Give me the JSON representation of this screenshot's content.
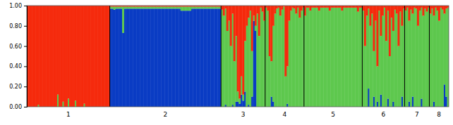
{
  "chart_data": {
    "type": "bar",
    "stacked": true,
    "ylim": [
      0,
      1
    ],
    "yticks": [
      {
        "value": 0,
        "label": "0.00"
      },
      {
        "value": 0.2,
        "label": "0.20"
      },
      {
        "value": 0.4,
        "label": "0.40"
      },
      {
        "value": 0.6,
        "label": "0.60"
      },
      {
        "value": 0.8,
        "label": "0.80"
      },
      {
        "value": 1,
        "label": "1.00"
      }
    ],
    "categories": [
      "1",
      null,
      null,
      null,
      null,
      null,
      null,
      null,
      null,
      null,
      null,
      null,
      null,
      null,
      null,
      null,
      null,
      null,
      null,
      null,
      null,
      null,
      null,
      null,
      null,
      null,
      null,
      null,
      null,
      null,
      null,
      null,
      null,
      null,
      null,
      null,
      null,
      null,
      null,
      null,
      null,
      null,
      null,
      null,
      null,
      null,
      null,
      "2",
      null,
      null,
      null,
      null,
      null,
      null,
      null,
      null,
      null,
      null,
      null,
      null,
      null,
      null,
      null,
      null,
      null,
      null,
      null,
      null,
      null,
      null,
      null,
      null,
      null,
      null,
      null,
      null,
      null,
      null,
      null,
      null,
      null,
      null,
      null,
      null,
      null,
      null,
      null,
      null,
      null,
      null,
      null,
      null,
      null,
      null,
      null,
      null,
      null,
      null,
      null,
      null,
      null,
      null,
      null,
      null,
      null,
      null,
      null,
      null,
      null,
      null,
      "3",
      null,
      null,
      null,
      null,
      null,
      null,
      null,
      null,
      null,
      null,
      null,
      null,
      null,
      null,
      null,
      null,
      null,
      null,
      null,
      null,
      null,
      null,
      null,
      null,
      "4",
      null,
      null,
      null,
      null,
      null,
      null,
      null,
      null,
      null,
      null,
      null,
      null,
      null,
      null,
      null,
      null,
      null,
      null,
      null,
      null,
      null,
      "5",
      null,
      null,
      null,
      null,
      null,
      null,
      null,
      null,
      null,
      null,
      null,
      null,
      null,
      null,
      null,
      null,
      null,
      null,
      null,
      null,
      null,
      null,
      null,
      null,
      null,
      null,
      null,
      null,
      null,
      null,
      null,
      null,
      "6",
      null,
      null,
      null,
      null,
      null,
      null,
      null,
      null,
      null,
      null,
      null,
      null,
      null,
      null,
      null,
      null,
      null,
      null,
      null,
      null,
      null,
      null,
      null,
      "7",
      null,
      null,
      null,
      null,
      null,
      null,
      null,
      null,
      null,
      null,
      null,
      null,
      null,
      "8",
      null,
      null,
      null,
      null,
      null,
      null,
      null,
      null,
      null,
      null
    ],
    "series": [
      {
        "color": "#0a3cc4",
        "values": [
          0,
          0,
          0,
          0,
          0,
          0,
          0,
          0,
          0,
          0,
          0,
          0,
          0,
          0,
          0,
          0,
          0,
          0,
          0,
          0,
          0,
          0,
          0,
          0,
          0,
          0,
          0,
          0,
          0,
          0,
          0,
          0,
          0,
          0,
          0,
          0,
          0,
          0,
          0,
          0,
          0,
          0,
          0,
          0,
          0,
          0,
          0,
          0.97,
          0.97,
          0.96,
          0.97,
          0.97,
          0.97,
          0.97,
          0.73,
          0.97,
          0.97,
          0.97,
          0.97,
          0.97,
          0.97,
          0.97,
          0.97,
          0.97,
          0.97,
          0.97,
          0.97,
          0.97,
          0.97,
          0.97,
          0.97,
          0.97,
          0.97,
          0.97,
          0.97,
          0.97,
          0.97,
          0.97,
          0.97,
          0.97,
          0.97,
          0.97,
          0.97,
          0.97,
          0.97,
          0.97,
          0.97,
          0.95,
          0.95,
          0.95,
          0.95,
          0.95,
          0.95,
          0.97,
          0.97,
          0.97,
          0.97,
          0.97,
          0.97,
          0.97,
          0.97,
          0.97,
          0.97,
          0.97,
          0.97,
          0.97,
          0.97,
          0.97,
          0.97,
          0.97,
          0,
          0,
          0.02,
          0,
          0,
          0,
          0.02,
          0,
          0.05,
          0.05,
          0.03,
          0.12,
          0.06,
          0.15,
          0,
          0.02,
          0,
          0.1,
          0.85,
          0.75,
          0,
          0,
          0,
          0,
          0,
          0,
          0,
          0,
          0.1,
          0.05,
          0,
          0,
          0,
          0,
          0,
          0,
          0,
          0.03,
          0,
          0,
          0,
          0,
          0,
          0,
          0,
          0,
          0,
          0,
          0,
          0,
          0,
          0,
          0,
          0,
          0,
          0,
          0,
          0,
          0,
          0,
          0,
          0,
          0,
          0,
          0,
          0,
          0,
          0,
          0,
          0,
          0,
          0,
          0,
          0,
          0,
          0,
          0,
          0,
          0,
          0,
          0,
          0,
          0,
          0.18,
          0,
          0,
          0.1,
          0,
          0.05,
          0,
          0.12,
          0,
          0,
          0,
          0.08,
          0,
          0,
          0.05,
          0,
          0,
          0,
          0,
          0.1,
          0,
          0,
          0,
          0.05,
          0,
          0.1,
          0,
          0,
          0,
          0,
          0.08,
          0,
          0,
          0,
          0,
          0,
          0,
          0.05,
          0,
          0,
          0,
          0,
          0,
          0.22,
          0.1,
          0
        ]
      },
      {
        "color": "#5ec84e",
        "values": [
          0,
          0,
          0,
          0,
          0,
          0,
          0.02,
          0,
          0,
          0,
          0,
          0,
          0,
          0,
          0,
          0,
          0,
          0.12,
          0,
          0,
          0.05,
          0,
          0,
          0.08,
          0,
          0,
          0,
          0.06,
          0,
          0,
          0,
          0,
          0.03,
          0,
          0,
          0,
          0,
          0,
          0,
          0,
          0,
          0,
          0,
          0,
          0,
          0,
          0,
          0.02,
          0.02,
          0.03,
          0.02,
          0.02,
          0.02,
          0.02,
          0.26,
          0.02,
          0.02,
          0.02,
          0.02,
          0.02,
          0.02,
          0.02,
          0.02,
          0.02,
          0.02,
          0.02,
          0.02,
          0.02,
          0.02,
          0.02,
          0.02,
          0.02,
          0.02,
          0.02,
          0.02,
          0.02,
          0.02,
          0.02,
          0.02,
          0.02,
          0.02,
          0.02,
          0.02,
          0.02,
          0.02,
          0.02,
          0.02,
          0.04,
          0.04,
          0.04,
          0.04,
          0.04,
          0.04,
          0.02,
          0.02,
          0.02,
          0.02,
          0.02,
          0.02,
          0.02,
          0.02,
          0.02,
          0.02,
          0.02,
          0.02,
          0.02,
          0.02,
          0.02,
          0.02,
          0.02,
          0.96,
          0.9,
          0.95,
          0.75,
          0.85,
          0.6,
          0.9,
          0.45,
          0.65,
          0.1,
          0.05,
          0.18,
          0.06,
          0.5,
          0.8,
          0.86,
          0.95,
          0.45,
          0.05,
          0.05,
          0.92,
          0.7,
          0.98,
          0.94,
          0.85,
          0.98,
          0.95,
          0.5,
          0.35,
          0.75,
          0.92,
          0.97,
          0.98,
          0.9,
          0.96,
          0.99,
          0.3,
          0.37,
          0.85,
          0.95,
          0.98,
          0.97,
          0.92,
          0.98,
          0.88,
          0.95,
          0.98,
          0.9,
          0.98,
          0.98,
          0.95,
          0.98,
          0.98,
          0.98,
          0.98,
          0.95,
          0.98,
          0.98,
          0.98,
          0.98,
          0.98,
          0.95,
          0.98,
          0.98,
          0.98,
          0.98,
          0.98,
          0.98,
          0.95,
          0.98,
          0.98,
          0.98,
          0.98,
          0.98,
          0.98,
          0.98,
          0.98,
          0.94,
          0.98,
          0.98,
          0.95,
          0.6,
          0.9,
          0.79,
          0.8,
          0.92,
          0.45,
          0.85,
          0.35,
          0.95,
          0.58,
          0.9,
          0.98,
          0.65,
          0.87,
          0.5,
          0.88,
          0.7,
          0.96,
          0.92,
          0.6,
          0.94,
          0.7,
          0.97,
          0.95,
          0.98,
          0.8,
          0.96,
          0.82,
          0.98,
          0.97,
          0.8,
          0.95,
          0.9,
          0.9,
          0.97,
          0.94,
          0.98,
          0.92,
          0.97,
          0.85,
          0.98,
          0.95,
          0.85,
          0.98,
          0.96,
          0.7,
          0.87,
          0.98
        ]
      },
      {
        "color": "#f52a0c",
        "values": [
          1,
          1,
          1,
          1,
          1,
          1,
          0.98,
          1,
          1,
          1,
          1,
          1,
          1,
          1,
          1,
          1,
          1,
          0.88,
          1,
          1,
          0.95,
          1,
          1,
          0.92,
          1,
          1,
          1,
          0.94,
          1,
          1,
          1,
          1,
          0.97,
          1,
          1,
          1,
          1,
          1,
          1,
          1,
          1,
          1,
          1,
          1,
          1,
          1,
          1,
          0.01,
          0.01,
          0.01,
          0.01,
          0.01,
          0.01,
          0.01,
          0.01,
          0.01,
          0.01,
          0.01,
          0.01,
          0.01,
          0.01,
          0.01,
          0.01,
          0.01,
          0.01,
          0.01,
          0.01,
          0.01,
          0.01,
          0.01,
          0.01,
          0.01,
          0.01,
          0.01,
          0.01,
          0.01,
          0.01,
          0.01,
          0.01,
          0.01,
          0.01,
          0.01,
          0.01,
          0.01,
          0.01,
          0.01,
          0.01,
          0.01,
          0.01,
          0.01,
          0.01,
          0.01,
          0.01,
          0.01,
          0.01,
          0.01,
          0.01,
          0.01,
          0.01,
          0.01,
          0.01,
          0.01,
          0.01,
          0.01,
          0.01,
          0.01,
          0.01,
          0.01,
          0.01,
          0.01,
          0.04,
          0.1,
          0.03,
          0.25,
          0.15,
          0.4,
          0.08,
          0.55,
          0.3,
          0.85,
          0.92,
          0.7,
          0.88,
          0.35,
          0.2,
          0.12,
          0.05,
          0.45,
          0.1,
          0.2,
          0.08,
          0.3,
          0.02,
          0.06,
          0.15,
          0.02,
          0.05,
          0.5,
          0.55,
          0.2,
          0.08,
          0.03,
          0.02,
          0.1,
          0.04,
          0.01,
          0.7,
          0.6,
          0.15,
          0.05,
          0.02,
          0.03,
          0.08,
          0.02,
          0.12,
          0.05,
          0.02,
          0.1,
          0.02,
          0.02,
          0.05,
          0.02,
          0.02,
          0.02,
          0.02,
          0.05,
          0.02,
          0.02,
          0.02,
          0.02,
          0.02,
          0.05,
          0.02,
          0.02,
          0.02,
          0.02,
          0.02,
          0.02,
          0.05,
          0.02,
          0.02,
          0.02,
          0.02,
          0.02,
          0.02,
          0.02,
          0.02,
          0.06,
          0.02,
          0.02,
          0.05,
          0.4,
          0.1,
          0.03,
          0.2,
          0.08,
          0.45,
          0.15,
          0.6,
          0.05,
          0.3,
          0.1,
          0.02,
          0.35,
          0.05,
          0.5,
          0.12,
          0.25,
          0.04,
          0.08,
          0.4,
          0.06,
          0.2,
          0.03,
          0.05,
          0.02,
          0.15,
          0.04,
          0.08,
          0.02,
          0.03,
          0.2,
          0.05,
          0.02,
          0.1,
          0.03,
          0.06,
          0.02,
          0.08,
          0.03,
          0.1,
          0.02,
          0.05,
          0.15,
          0.02,
          0.04,
          0.08,
          0.03,
          0.02
        ]
      }
    ]
  }
}
